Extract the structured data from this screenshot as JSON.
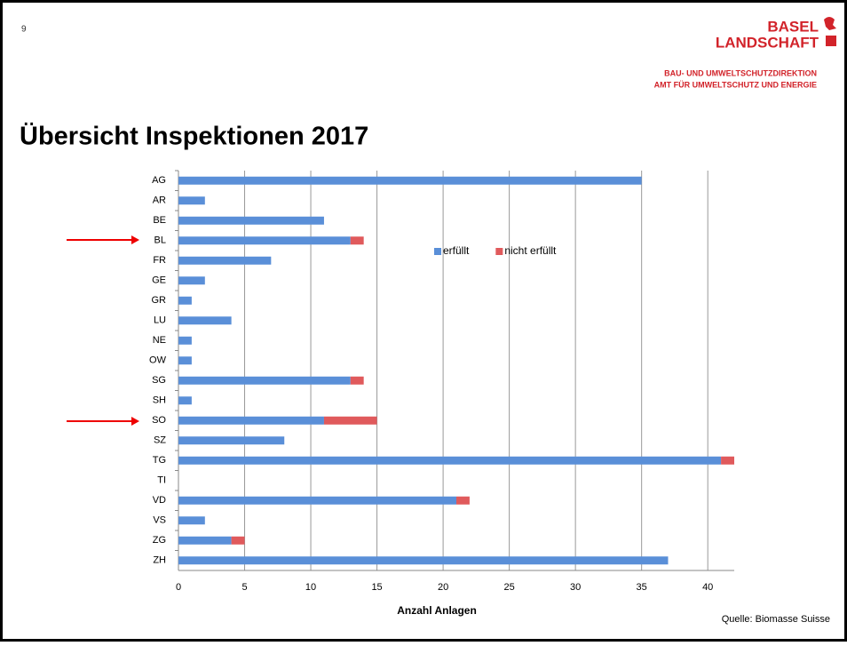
{
  "slide": {
    "page_number": "9",
    "logo_line1": "BASEL",
    "logo_line2": "LANDSCHAFT",
    "dept_line1": "BAU- UND UMWELTSCHUTZDIREKTION",
    "dept_line2": "AMT FÜR UMWELTSCHUTZ UND ENERGIE",
    "source": "Quelle: Biomasse Suisse"
  },
  "chart_data": {
    "type": "stacked_bar_horizontal",
    "title": "Übersicht Inspektionen 2017",
    "xlabel": "Anzahl Anlagen",
    "categories": [
      "AG",
      "AR",
      "BE",
      "BL",
      "FR",
      "GE",
      "GR",
      "LU",
      "NE",
      "OW",
      "SG",
      "SH",
      "SO",
      "SZ",
      "TG",
      "TI",
      "VD",
      "VS",
      "ZG",
      "ZH"
    ],
    "series": [
      {
        "name": "erfüllt",
        "color": "#5a8fd8",
        "values": [
          35,
          2,
          11,
          13,
          7,
          2,
          1,
          4,
          1,
          1,
          13,
          1,
          11,
          8,
          41,
          0,
          21,
          2,
          4,
          37
        ]
      },
      {
        "name": "nicht erfüllt",
        "color": "#e05a5c",
        "values": [
          0,
          0,
          0,
          1,
          0,
          0,
          0,
          0,
          0,
          0,
          1,
          0,
          4,
          0,
          1,
          0,
          1,
          0,
          1,
          0
        ]
      }
    ],
    "xlim": [
      0,
      42
    ],
    "xticks": [
      0,
      5,
      10,
      15,
      20,
      25,
      30,
      35,
      40
    ],
    "grid": true,
    "legend": "top-right"
  }
}
